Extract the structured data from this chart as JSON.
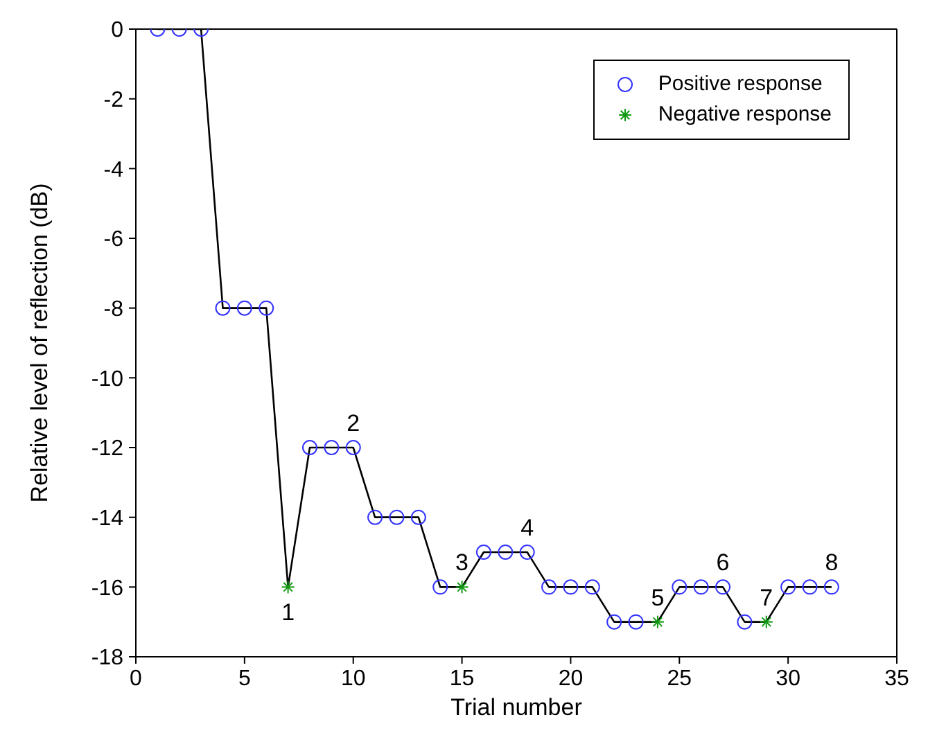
{
  "chart_data": {
    "type": "scatter",
    "xlabel": "Trial number",
    "ylabel": "Relative level of reflection (dB)",
    "xlim": [
      0,
      35
    ],
    "xticks": [
      0,
      5,
      10,
      15,
      20,
      25,
      30,
      35
    ],
    "ylim": [
      -18,
      0
    ],
    "yticks": [
      -18,
      -16,
      -14,
      -12,
      -10,
      -8,
      -6,
      -4,
      -2,
      0
    ],
    "grid": false,
    "legend": "top right",
    "series": [
      {
        "type": "line",
        "color": "#000000",
        "marker": "none",
        "line_style": "solid",
        "x": [
          1,
          2,
          3,
          4,
          5,
          6,
          7,
          8,
          9,
          10,
          11,
          12,
          13,
          14,
          15,
          16,
          17,
          18,
          19,
          20,
          21,
          22,
          23,
          24,
          25,
          26,
          27,
          28,
          29,
          30,
          31,
          32
        ],
        "values": [
          0,
          0,
          0,
          -8,
          -8,
          -8,
          -16,
          -12,
          -12,
          -12,
          -14,
          -14,
          -14,
          -16,
          -16,
          -15,
          -15,
          -15,
          -16,
          -16,
          -16,
          -17,
          -17,
          -17,
          -16,
          -16,
          -16,
          -17,
          -17,
          -16,
          -16,
          -16
        ]
      },
      {
        "name": "Positive response",
        "color": "#3333ff",
        "marker": "circle",
        "x": [
          1,
          2,
          3,
          4,
          5,
          6,
          8,
          9,
          10,
          11,
          12,
          13,
          14,
          16,
          17,
          18,
          19,
          20,
          21,
          22,
          23,
          25,
          26,
          27,
          28,
          30,
          31,
          32
        ],
        "values": [
          0,
          0,
          0,
          -8,
          -8,
          -8,
          -12,
          -12,
          -12,
          -14,
          -14,
          -14,
          -16,
          -15,
          -15,
          -15,
          -16,
          -16,
          -16,
          -17,
          -17,
          -16,
          -16,
          -16,
          -17,
          -16,
          -16,
          -16
        ]
      },
      {
        "name": "Negative response",
        "color": "#119911",
        "marker": "cross",
        "x": [
          7,
          15,
          24,
          29
        ],
        "values": [
          -16,
          -16,
          -17,
          -17
        ]
      }
    ],
    "annotations": [
      {
        "text": "1",
        "x": 7,
        "y": -16
      },
      {
        "text": "2",
        "x": 10,
        "y": -12
      },
      {
        "text": "3",
        "x": 15,
        "y": -16
      },
      {
        "text": "4",
        "x": 18,
        "y": -15
      },
      {
        "text": "5",
        "x": 24,
        "y": -17
      },
      {
        "text": "6",
        "x": 27,
        "y": -16
      },
      {
        "text": "7",
        "x": 29,
        "y": -17
      },
      {
        "text": "8",
        "x": 32,
        "y": -16
      }
    ]
  }
}
